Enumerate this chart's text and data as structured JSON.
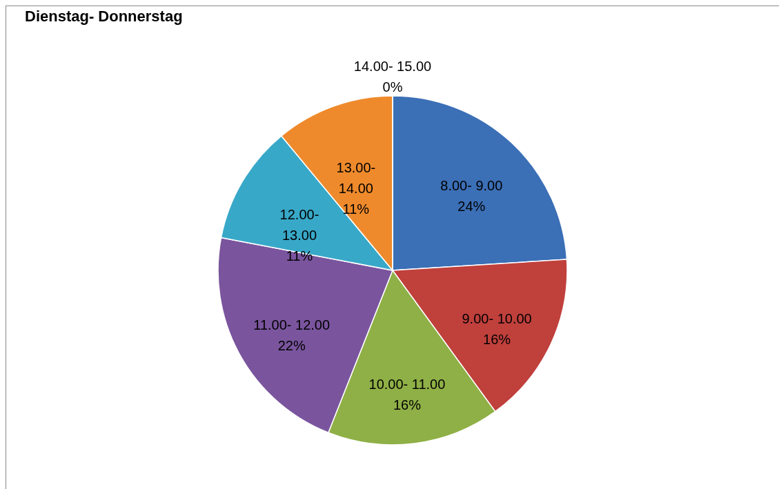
{
  "chart_data": {
    "type": "pie",
    "title": "Dienstag- Donnerstag",
    "categories": [
      "8.00- 9.00",
      "9.00- 10.00",
      "10.00- 11.00",
      "11.00- 12.00",
      "12.00- 13.00",
      "13.00- 14.00",
      "14.00- 15.00"
    ],
    "values": [
      24,
      16,
      16,
      22,
      11,
      11,
      0
    ],
    "value_labels": [
      "24%",
      "16%",
      "16%",
      "22%",
      "11%",
      "11%",
      "0%"
    ],
    "colors": [
      "#3b6fb6",
      "#c0403c",
      "#8fb046",
      "#7a559e",
      "#38a8c8",
      "#ef8a2c",
      "#2c4d75"
    ],
    "legend": false
  }
}
